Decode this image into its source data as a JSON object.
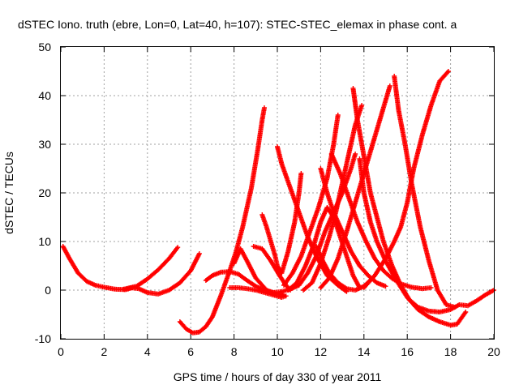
{
  "chart_data": {
    "type": "scatter",
    "title": "dSTEC Iono. truth (ebre, Lon=0, Lat=40, h=107): STEC-STEC_elemax in phase cont. a",
    "xlabel": "GPS time / hours of day 330 of year 2011",
    "ylabel": "dSTEC  / TECUs",
    "xlim": [
      0,
      20
    ],
    "ylim": [
      -10,
      50
    ],
    "xticks": [
      "0",
      "2",
      "4",
      "6",
      "8",
      "10",
      "12",
      "14",
      "16",
      "18",
      "20"
    ],
    "yticks": [
      "-10",
      "0",
      "10",
      "20",
      "30",
      "40",
      "50"
    ],
    "grid": true,
    "marker": "+",
    "color": "#ff0000",
    "series": [
      {
        "x": [
          0.1,
          0.4,
          0.8,
          1.2,
          1.6,
          2.0,
          2.5,
          3.0,
          3.3
        ],
        "y": [
          9,
          6.5,
          3.5,
          1.8,
          1.0,
          0.6,
          0.2,
          0.1,
          0.5
        ]
      },
      {
        "x": [
          2.9,
          3.5,
          4.0,
          4.5,
          5.0,
          5.4
        ],
        "y": [
          0.2,
          0.8,
          2.3,
          4.2,
          6.5,
          8.8
        ]
      },
      {
        "x": [
          3.2,
          3.6,
          4.0,
          4.5,
          5.0,
          5.5,
          6.0,
          6.4
        ],
        "y": [
          0.5,
          0.3,
          -0.5,
          -0.8,
          0,
          1.5,
          4,
          7.5
        ]
      },
      {
        "x": [
          5.5,
          5.8,
          6.1,
          6.4,
          6.7,
          7.0,
          7.4,
          7.8,
          8.1,
          8.4,
          8.8,
          9.1,
          9.3,
          9.4
        ],
        "y": [
          -6.5,
          -8.0,
          -8.8,
          -8.6,
          -7.5,
          -5.5,
          -1.0,
          4.0,
          8,
          13,
          21,
          29,
          35,
          37.5
        ]
      },
      {
        "x": [
          6.7,
          7.0,
          7.4,
          7.8,
          8.2,
          8.6,
          9.0,
          9.4,
          9.8
        ],
        "y": [
          2,
          3,
          3.7,
          3.8,
          3.3,
          2.0,
          0.8,
          0,
          -0.5
        ]
      },
      {
        "x": [
          7.8,
          8.2,
          8.6,
          9.0,
          9.4,
          9.8,
          10.2,
          10.4
        ],
        "y": [
          0.5,
          0.5,
          0.3,
          0,
          -0.5,
          -1,
          -1.5,
          -1.2
        ]
      },
      {
        "x": [
          8.0,
          8.3,
          8.6,
          9.0,
          9.5,
          10.0,
          10.3
        ],
        "y": [
          5.5,
          8.5,
          6.0,
          2.5,
          0,
          -0.8,
          -1.0
        ]
      },
      {
        "x": [
          8.9,
          9.3,
          9.7,
          10.1,
          10.4,
          10.6
        ],
        "y": [
          9,
          8.5,
          6.0,
          3.0,
          1,
          0
        ]
      },
      {
        "x": [
          9.3,
          9.5,
          9.7,
          9.9,
          10.0,
          10.2,
          10.5,
          10.8,
          11.0,
          11.1
        ],
        "y": [
          15.5,
          13,
          10,
          7,
          5,
          3.5,
          8,
          14,
          20,
          24
        ]
      },
      {
        "x": [
          10.0,
          10.2,
          10.6,
          11.0,
          11.4,
          11.8,
          12.3,
          12.8,
          13.2
        ],
        "y": [
          29.5,
          26,
          21,
          16,
          11,
          7,
          3,
          1,
          -0.3
        ]
      },
      {
        "x": [
          9.8,
          10.2,
          10.6,
          11.0,
          11.4,
          11.8,
          12.2,
          12.6,
          13.0,
          13.4,
          13.6
        ],
        "y": [
          -0.5,
          -0.3,
          0.2,
          1.0,
          3.5,
          7,
          12,
          16,
          20,
          25,
          28
        ]
      },
      {
        "x": [
          10.3,
          10.7,
          11.1,
          11.5,
          11.9,
          12.3,
          12.6,
          12.8
        ],
        "y": [
          1.0,
          3.5,
          7.0,
          12,
          17,
          23,
          30,
          36
        ]
      },
      {
        "x": [
          10.5,
          10.9,
          11.3,
          11.7,
          12.0,
          12.3,
          12.6,
          12.9,
          13.2,
          13.5,
          13.8
        ],
        "y": [
          0,
          1.5,
          5.0,
          9.5,
          14,
          17,
          15,
          11,
          7,
          3,
          0.5
        ]
      },
      {
        "x": [
          11.2,
          11.6,
          12.0,
          12.4,
          12.7,
          13.0,
          13.3,
          13.6,
          13.9
        ],
        "y": [
          0,
          1.5,
          5.5,
          11,
          16,
          22,
          28,
          34,
          38
        ]
      },
      {
        "x": [
          11.8,
          12.1,
          12.4,
          12.8,
          13.2,
          13.6,
          14.0,
          14.4
        ],
        "y": [
          9,
          6,
          3.5,
          1.5,
          0.3,
          0,
          0.8,
          2.5
        ]
      },
      {
        "x": [
          12.0,
          12.3,
          12.6,
          13.0,
          13.4,
          13.8,
          14.2,
          14.6,
          15.0
        ],
        "y": [
          25,
          20,
          16,
          12,
          8,
          5,
          3,
          1.5,
          0.8
        ]
      },
      {
        "x": [
          12.0,
          12.4,
          12.8,
          13.2,
          13.6,
          14.0,
          14.4,
          14.8,
          15.2
        ],
        "y": [
          0.5,
          2.5,
          6.5,
          12,
          18,
          24,
          30,
          36,
          42
        ]
      },
      {
        "x": [
          12.5,
          12.9,
          13.3,
          13.7,
          14.1,
          14.5,
          14.9,
          15.3,
          15.7,
          16.2,
          16.7,
          17.1
        ],
        "y": [
          28,
          24,
          19,
          14,
          10,
          6.5,
          4,
          2.4,
          1.3,
          0.6,
          0.3,
          0.5
        ]
      },
      {
        "x": [
          13.5,
          13.7,
          13.9,
          14.1,
          14.3,
          14.6,
          14.9,
          15.3,
          15.7,
          16.1,
          16.5,
          17.0,
          17.5,
          18.0,
          18.4,
          18.8,
          19.2,
          19.6,
          20.0
        ],
        "y": [
          41.5,
          35,
          30,
          25,
          20,
          15,
          10,
          5,
          1,
          -2,
          -3.5,
          -4.3,
          -4.5,
          -4.0,
          -3,
          -3.2,
          -2.2,
          -1.0,
          0
        ]
      },
      {
        "x": [
          13.8,
          14.0,
          14.3,
          14.6,
          15.0,
          15.5,
          16.0,
          16.5,
          17.0,
          17.5,
          18.0,
          18.3,
          18.7
        ],
        "y": [
          27,
          20,
          14,
          10,
          6,
          2,
          -1.5,
          -4,
          -5.5,
          -6.5,
          -7.2,
          -7.0,
          -4.5
        ]
      },
      {
        "x": [
          14.0,
          14.5,
          15.0,
          15.4,
          15.7,
          16.0,
          16.3,
          16.7,
          17.1,
          17.5,
          17.9
        ],
        "y": [
          0.5,
          3,
          6.5,
          10,
          13,
          18,
          25,
          32,
          38,
          43,
          45
        ]
      },
      {
        "x": [
          15.4,
          15.6,
          15.9,
          16.2,
          16.6,
          17.0,
          17.4,
          17.8,
          18.2
        ],
        "y": [
          44,
          37,
          30,
          22,
          13,
          6,
          0,
          -3,
          -3.5
        ]
      }
    ]
  }
}
